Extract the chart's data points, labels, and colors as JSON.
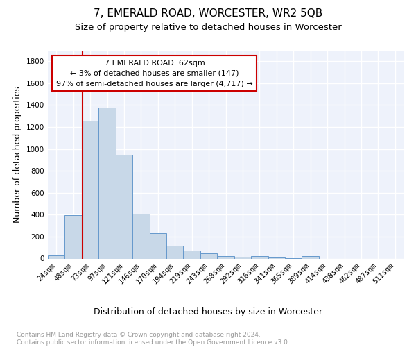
{
  "title": "7, EMERALD ROAD, WORCESTER, WR2 5QB",
  "subtitle": "Size of property relative to detached houses in Worcester",
  "xlabel": "Distribution of detached houses by size in Worcester",
  "ylabel": "Number of detached properties",
  "bar_color": "#c8d8e8",
  "bar_edge_color": "#6699cc",
  "annotation_box_color": "#cc0000",
  "vline_color": "#cc0000",
  "annotation_text": "7 EMERALD ROAD: 62sqm\n← 3% of detached houses are smaller (147)\n97% of semi-detached houses are larger (4,717) →",
  "property_sqm": 62,
  "categories": [
    "24sqm",
    "48sqm",
    "73sqm",
    "97sqm",
    "121sqm",
    "146sqm",
    "170sqm",
    "194sqm",
    "219sqm",
    "243sqm",
    "268sqm",
    "292sqm",
    "316sqm",
    "341sqm",
    "365sqm",
    "389sqm",
    "414sqm",
    "438sqm",
    "462sqm",
    "487sqm",
    "511sqm"
  ],
  "values": [
    30,
    395,
    1260,
    1380,
    945,
    410,
    230,
    115,
    70,
    45,
    20,
    15,
    20,
    10,
    5,
    20,
    0,
    0,
    0,
    0,
    0
  ],
  "ylim": [
    0,
    1900
  ],
  "yticks": [
    0,
    200,
    400,
    600,
    800,
    1000,
    1200,
    1400,
    1600,
    1800
  ],
  "footer_text": "Contains HM Land Registry data © Crown copyright and database right 2024.\nContains public sector information licensed under the Open Government Licence v3.0.",
  "background_color": "#eef2fb",
  "grid_color": "#ffffff",
  "title_fontsize": 11,
  "subtitle_fontsize": 9.5,
  "axis_label_fontsize": 9,
  "tick_fontsize": 7.5,
  "footer_fontsize": 6.5
}
